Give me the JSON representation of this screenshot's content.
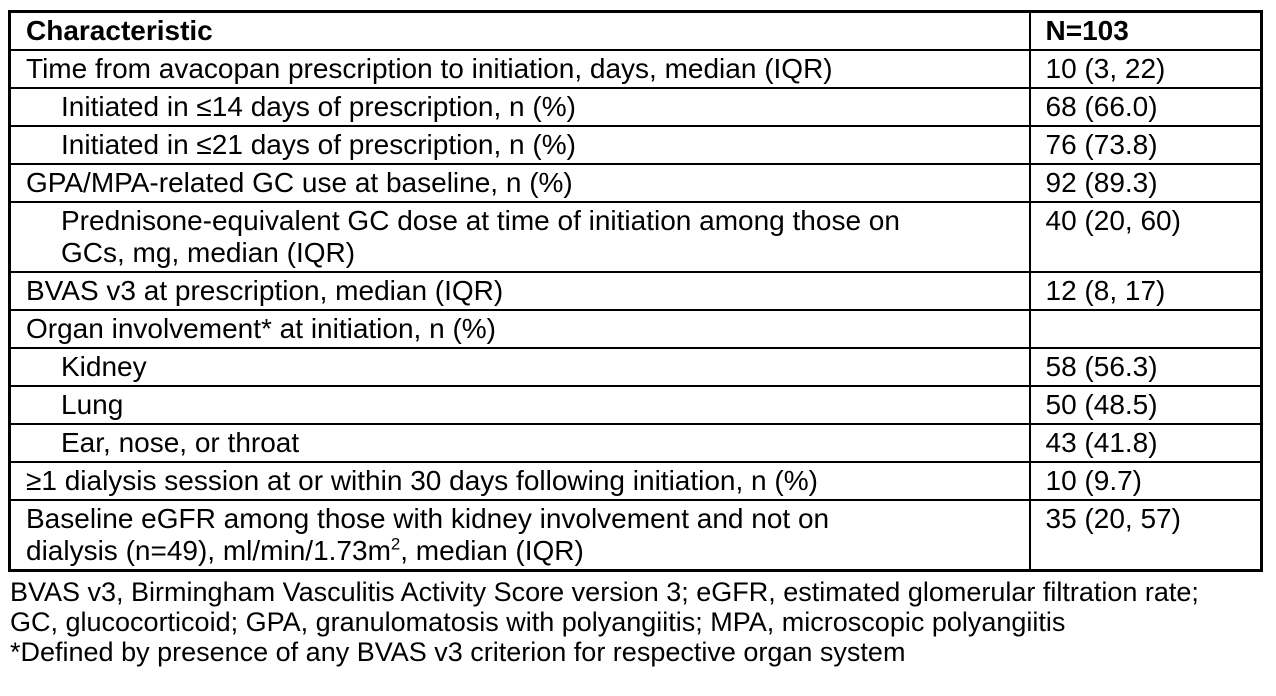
{
  "table": {
    "header": {
      "characteristic": "Characteristic",
      "n_label": "N=103"
    },
    "rows": [
      {
        "label": "Time from avacopan prescription to initiation, days, median (IQR)",
        "value": "10 (3, 22)"
      },
      {
        "label": "Initiated in ≤14 days of prescription, n (%)",
        "value": "68 (66.0)"
      },
      {
        "label": "Initiated in ≤21 days of prescription, n (%)",
        "value": "76 (73.8)"
      },
      {
        "label": "GPA/MPA-related GC use at baseline, n (%)",
        "value": "92 (89.3)"
      },
      {
        "label_line1": "Prednisone-equivalent GC dose at time of initiation among those on",
        "label_line2": "GCs, mg, median (IQR)",
        "value": "40 (20, 60)"
      },
      {
        "label": "BVAS v3 at prescription, median (IQR)",
        "value": "12 (8, 17)"
      },
      {
        "label": "Organ involvement* at initiation, n (%)",
        "value": ""
      },
      {
        "label": "Kidney",
        "value": "58 (56.3)"
      },
      {
        "label": "Lung",
        "value": "50 (48.5)"
      },
      {
        "label": "Ear, nose, or throat",
        "value": "43 (41.8)"
      },
      {
        "label": "≥1 dialysis session at or within 30 days following initiation, n (%)",
        "value": "10 (9.7)"
      },
      {
        "label_line1": "Baseline eGFR among those with kidney involvement and not on",
        "label_line2_pre": "dialysis (n=49), ml/min/1.73m",
        "label_line2_sup": "2",
        "label_line2_post": ", median (IQR)",
        "value": "35 (20, 57)"
      }
    ]
  },
  "footnotes": {
    "abbrev_line1": "BVAS v3, Birmingham Vasculitis Activity Score version 3; eGFR, estimated glomerular filtration rate;",
    "abbrev_line2": "GC, glucocorticoid; GPA, granulomatosis with polyangiitis; MPA, microscopic polyangiitis",
    "asterisk_note": "*Defined by presence of any BVAS v3 criterion for respective organ system"
  }
}
